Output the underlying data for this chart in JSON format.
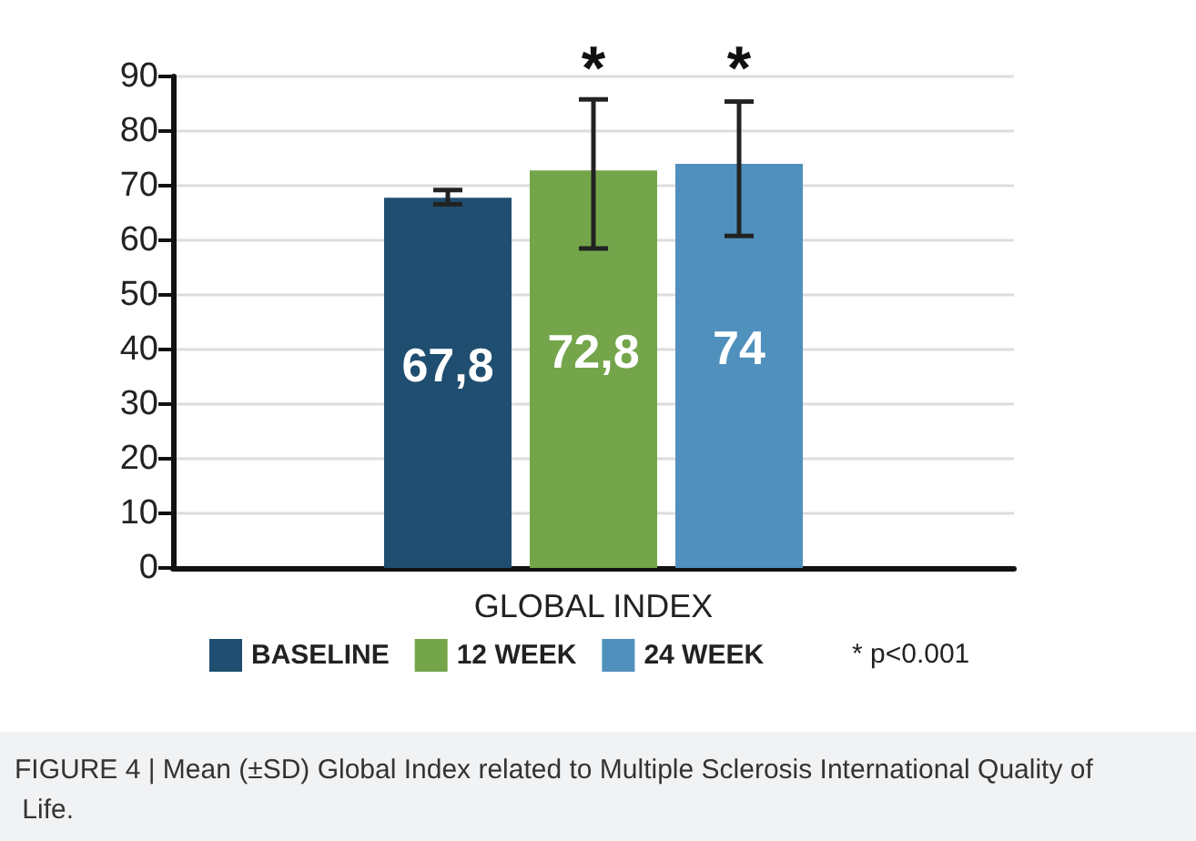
{
  "chart_data": {
    "type": "bar",
    "categories": [
      "GLOBAL INDEX"
    ],
    "series": [
      {
        "name": "BASELINE",
        "color": "#1f4e70",
        "values": [
          67.8
        ],
        "errors": [
          [
            66.6,
            69.2
          ]
        ],
        "value_labels": [
          "67,8"
        ]
      },
      {
        "name": "12 WEEK",
        "color": "#74a54a",
        "values": [
          72.8
        ],
        "errors": [
          [
            58.5,
            85.8
          ]
        ],
        "value_labels": [
          "72,8"
        ]
      },
      {
        "name": "24 WEEK",
        "color": "#5090bd",
        "values": [
          74
        ],
        "errors": [
          [
            60.8,
            85.4
          ]
        ],
        "value_labels": [
          "74"
        ]
      }
    ],
    "ylim": [
      0,
      90
    ],
    "yticks": [
      0,
      10,
      20,
      30,
      40,
      50,
      60,
      70,
      80,
      90
    ],
    "grid": "y",
    "legend": "bottom",
    "annotations": [
      "*",
      "*",
      "* p<0.001",
      "FIGURE 4 | Mean (±SD) Global Index related to Multiple Sclerosis International Quality of Life."
    ]
  }
}
